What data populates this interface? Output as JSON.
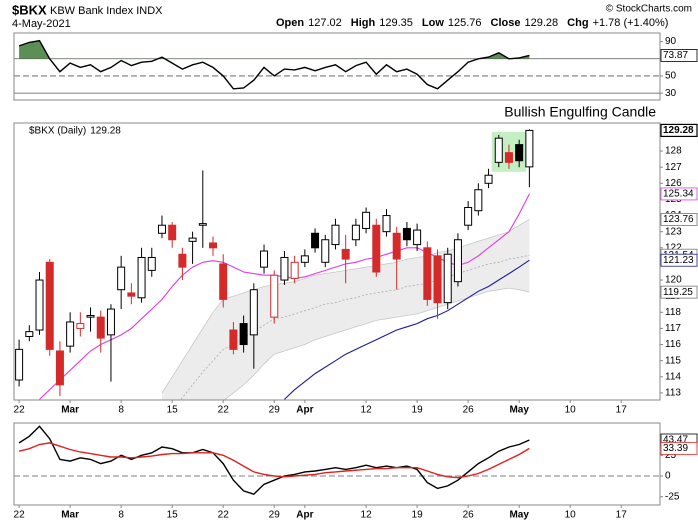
{
  "header": {
    "symbol": "$BKX",
    "name": "KBW Bank Index INDX",
    "copyright": "© StockCharts.com",
    "date": "4-May-2021",
    "quote": [
      {
        "label": "Open",
        "value": "127.02"
      },
      {
        "label": "High",
        "value": "129.35"
      },
      {
        "label": "Low",
        "value": "125.76"
      },
      {
        "label": "Close",
        "value": "129.28"
      },
      {
        "label": "Chg",
        "value": "+1.78 (+1.40%)"
      }
    ]
  },
  "chart_data": [
    {
      "type": "line",
      "xlim": [
        -0.5,
        62.8
      ],
      "ylim": [
        22,
        100
      ],
      "yticks": [
        30,
        50,
        70,
        90
      ],
      "reference_lines": [
        {
          "value": 70,
          "style": "solid"
        },
        {
          "value": 50,
          "style": "dashed"
        },
        {
          "value": 30,
          "style": "solid"
        }
      ],
      "fill_above": {
        "value": 70,
        "color": "#5b8f55"
      },
      "series": [
        {
          "color": "#000000",
          "values": [
            85,
            89,
            91,
            70,
            55,
            65,
            60,
            63,
            55,
            60,
            68,
            62,
            66,
            67,
            72,
            65,
            58,
            63,
            66,
            60,
            50,
            35,
            36,
            45,
            60,
            50,
            58,
            57,
            60,
            56,
            60,
            63,
            55,
            62,
            66,
            52,
            63,
            55,
            58,
            52,
            40,
            35,
            45,
            55,
            66,
            70,
            72,
            77,
            70,
            71,
            73.87
          ]
        }
      ]
    },
    {
      "type": "candlestick",
      "legend": "$BKX (Daily)",
      "xlim": [
        -0.5,
        62.8
      ],
      "ylim": [
        112.56,
        129.74
      ],
      "yticks": [
        113,
        114,
        115,
        116,
        117,
        118,
        119,
        120,
        121,
        122,
        123,
        124,
        125,
        126,
        127,
        128
      ],
      "xticks": [
        {
          "value": 0,
          "label": "22"
        },
        {
          "value": 5,
          "label": "Mar"
        },
        {
          "value": 10,
          "label": "8"
        },
        {
          "value": 15,
          "label": "15"
        },
        {
          "value": 20,
          "label": "22"
        },
        {
          "value": 25,
          "label": "29"
        },
        {
          "value": 28,
          "label": "Apr"
        },
        {
          "value": 34,
          "label": "12"
        },
        {
          "value": 39,
          "label": "19"
        },
        {
          "value": 44,
          "label": "26"
        },
        {
          "value": 49,
          "label": "May"
        },
        {
          "value": 54,
          "label": "10"
        },
        {
          "value": 59,
          "label": "17"
        }
      ],
      "up_color": "#000000",
      "down_color": "#d42a2a",
      "open": [
        113.8,
        116.5,
        116.9,
        121.1,
        115.6,
        115.9,
        117.0,
        117.7,
        117.7,
        116.6,
        119.4,
        119.2,
        118.9,
        120.6,
        122.9,
        123.4,
        121.6,
        122.4,
        123.4,
        122.3,
        121.0,
        116.9,
        117.3,
        116.6,
        120.8,
        117.7,
        120.0,
        120.1,
        121.1,
        122.9,
        121.1,
        122.2,
        121.9,
        122.5,
        123.2,
        123.4,
        123.0,
        122.9,
        123.2,
        122.2,
        122.0,
        121.5,
        118.6,
        119.9,
        123.4,
        124.3,
        126.0,
        127.3,
        127.9,
        128.4,
        127.02
      ],
      "high": [
        116.3,
        117.2,
        120.5,
        121.3,
        116.2,
        118.0,
        118.0,
        118.3,
        118.1,
        118.5,
        121.5,
        119.8,
        122.0,
        122.0,
        124.0,
        123.6,
        122.0,
        123.0,
        126.8,
        122.7,
        121.6,
        117.4,
        117.8,
        119.8,
        122.2,
        120.6,
        121.8,
        121.5,
        121.9,
        123.2,
        122.8,
        123.8,
        122.8,
        123.8,
        124.5,
        123.8,
        124.4,
        123.3,
        123.6,
        123.5,
        122.4,
        121.9,
        122.0,
        122.9,
        124.9,
        126.0,
        126.9,
        129.0,
        128.4,
        128.7,
        129.35
      ],
      "low": [
        113.4,
        116.2,
        116.6,
        115.3,
        112.8,
        115.5,
        116.5,
        116.8,
        115.5,
        113.7,
        118.2,
        118.5,
        118.6,
        120.2,
        122.6,
        122.0,
        120.0,
        121.0,
        122.0,
        121.5,
        118.3,
        115.4,
        115.5,
        114.5,
        120.4,
        117.3,
        119.7,
        119.8,
        120.8,
        121.7,
        120.8,
        121.9,
        119.8,
        122.1,
        122.9,
        120.2,
        122.7,
        119.4,
        122.1,
        121.8,
        118.4,
        117.6,
        118.2,
        119.6,
        123.1,
        124.0,
        125.7,
        127.0,
        126.9,
        127.0,
        125.76
      ],
      "close": [
        115.7,
        116.8,
        120.0,
        115.7,
        113.5,
        117.4,
        117.3,
        117.8,
        116.4,
        118.2,
        120.8,
        119.0,
        121.4,
        121.4,
        123.4,
        122.5,
        120.8,
        122.6,
        123.5,
        122.0,
        118.8,
        115.7,
        116.0,
        119.4,
        121.8,
        120.3,
        121.4,
        121.1,
        121.5,
        122.0,
        122.5,
        123.4,
        121.3,
        123.4,
        124.2,
        120.5,
        124.0,
        121.3,
        122.5,
        123.1,
        118.8,
        118.6,
        121.6,
        122.5,
        124.5,
        125.6,
        126.5,
        128.8,
        127.3,
        127.4,
        129.28
      ],
      "band": {
        "fill": "#ececec",
        "color": "#c8c8c8",
        "upper": [
          null,
          null,
          null,
          null,
          null,
          null,
          null,
          null,
          null,
          null,
          null,
          null,
          null,
          null,
          113,
          114,
          115,
          116,
          117,
          118,
          118.8,
          119,
          119.2,
          119.4,
          119.6,
          119.7,
          119.8,
          119.9,
          120.1,
          120.3,
          120.4,
          120.5,
          120.6,
          120.7,
          120.8,
          120.9,
          121.0,
          121.1,
          121.3,
          121.4,
          121.5,
          121.7,
          121.8,
          122.0,
          122.2,
          122.4,
          122.6,
          122.8,
          123.0,
          123.4,
          123.76
        ],
        "middle": [
          null,
          null,
          null,
          null,
          null,
          null,
          null,
          null,
          null,
          null,
          null,
          null,
          null,
          null,
          111,
          111.9,
          112.7,
          113.5,
          114.3,
          115,
          115.7,
          116,
          116.4,
          116.8,
          117.2,
          117.6,
          117.7,
          117.9,
          118.1,
          118.3,
          118.5,
          118.6,
          118.8,
          118.9,
          119.1,
          119.2,
          119.3,
          119.4,
          119.6,
          119.7,
          119.8,
          120,
          120.2,
          120.4,
          120.6,
          120.8,
          121,
          121.1,
          121.3,
          121.4,
          121.54
        ],
        "lower": [
          null,
          null,
          null,
          null,
          null,
          null,
          null,
          null,
          null,
          null,
          null,
          null,
          null,
          null,
          109,
          109.7,
          110.4,
          111,
          111.6,
          112,
          112.5,
          113,
          113.5,
          114.1,
          114.8,
          115.4,
          115.6,
          115.8,
          116,
          116.3,
          116.5,
          116.7,
          116.9,
          117.1,
          117.3,
          117.5,
          117.6,
          117.7,
          117.8,
          117.9,
          118.1,
          118.3,
          118.5,
          118.7,
          118.9,
          119.1,
          119.3,
          119.4,
          119.5,
          119.4,
          119.25
        ]
      },
      "overlays": [
        {
          "color": "#e23be2",
          "values": [
            null,
            null,
            112.6,
            113.2,
            113.8,
            114.4,
            115,
            115.6,
            116,
            116.3,
            116.6,
            117,
            117.6,
            118.2,
            118.8,
            119.6,
            120.3,
            120.8,
            121.1,
            121.2,
            121.1,
            120.8,
            120.5,
            120.4,
            120.3,
            120.3,
            120.2,
            120.1,
            120.2,
            120.4,
            120.6,
            120.8,
            121,
            121.1,
            121.3,
            121.4,
            121.6,
            121.8,
            122,
            122,
            121.7,
            121.4,
            121.1,
            120.9,
            121.1,
            121.5,
            122.0,
            122.5,
            123,
            124.1,
            125.34
          ]
        },
        {
          "color": "#1c1c9c",
          "values": [
            null,
            null,
            null,
            null,
            null,
            null,
            null,
            null,
            null,
            null,
            null,
            null,
            null,
            null,
            null,
            null,
            null,
            null,
            null,
            null,
            null,
            null,
            null,
            null,
            null,
            null,
            112.6,
            113.2,
            113.7,
            114.2,
            114.6,
            115,
            115.4,
            115.7,
            116,
            116.3,
            116.6,
            116.9,
            117.1,
            117.3,
            117.6,
            117.8,
            118.1,
            118.5,
            118.9,
            119.3,
            119.6,
            120,
            120.4,
            120.8,
            121.23
          ]
        }
      ],
      "annotation": {
        "text": "Bullish Engulfing Candle",
        "color": "#1f45d6",
        "from": 47,
        "to": 49,
        "box_color": "#9be59b"
      }
    },
    {
      "type": "line",
      "xlim": [
        -0.5,
        62.8
      ],
      "ylim": [
        -35,
        64
      ],
      "yticks": [
        -25,
        0,
        25
      ],
      "xticks": [
        {
          "value": 0,
          "label": "22"
        },
        {
          "value": 5,
          "label": "Mar"
        },
        {
          "value": 10,
          "label": "8"
        },
        {
          "value": 15,
          "label": "15"
        },
        {
          "value": 20,
          "label": "22"
        },
        {
          "value": 25,
          "label": "29"
        },
        {
          "value": 28,
          "label": "Apr"
        },
        {
          "value": 34,
          "label": "12"
        },
        {
          "value": 39,
          "label": "19"
        },
        {
          "value": 44,
          "label": "26"
        },
        {
          "value": 49,
          "label": "May"
        },
        {
          "value": 54,
          "label": "10"
        },
        {
          "value": 59,
          "label": "17"
        }
      ],
      "reference_lines": [
        {
          "value": 0,
          "style": "dashed"
        }
      ],
      "series": [
        {
          "color": "#000000",
          "values": [
            40,
            48,
            60,
            45,
            20,
            18,
            22,
            20,
            15,
            18,
            25,
            20,
            25,
            28,
            35,
            33,
            28,
            28,
            32,
            28,
            15,
            -5,
            -18,
            -22,
            -10,
            -5,
            0,
            2,
            5,
            6,
            8,
            10,
            8,
            10,
            13,
            10,
            12,
            10,
            12,
            8,
            -8,
            -15,
            -12,
            -5,
            5,
            15,
            22,
            30,
            35,
            38,
            43.47
          ]
        },
        {
          "color": "#e02020",
          "values": [
            30,
            33,
            38,
            40,
            36,
            32,
            29,
            27,
            25,
            23,
            23,
            22,
            23,
            24,
            26,
            27,
            27,
            28,
            28,
            28,
            25,
            19,
            12,
            5,
            2,
            0,
            -1,
            0,
            1,
            2,
            4,
            5,
            6,
            7,
            8,
            9,
            9,
            10,
            10,
            10,
            6,
            2,
            -1,
            -2,
            0,
            3,
            8,
            14,
            20,
            26,
            33.39
          ]
        }
      ]
    }
  ]
}
